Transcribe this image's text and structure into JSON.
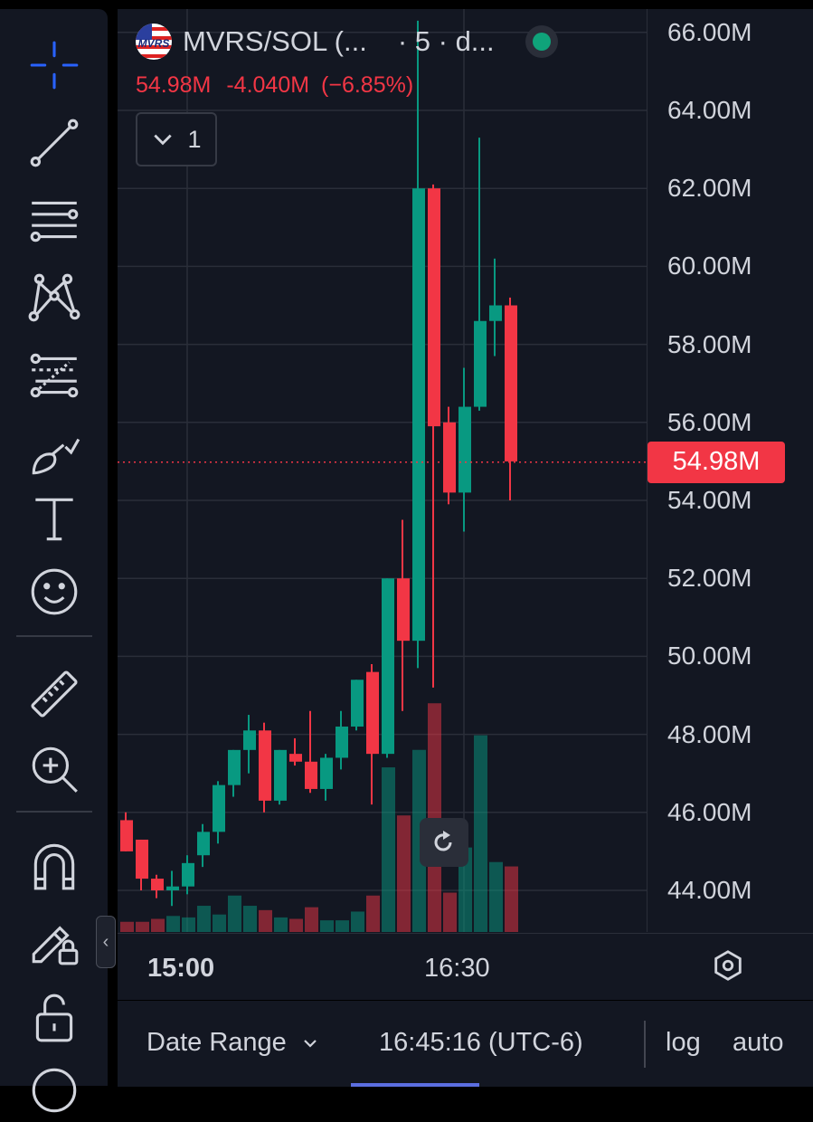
{
  "symbol": {
    "name": "MVRS/SOL (...",
    "interval": "· 5 · d...",
    "logo_text": "MVRS"
  },
  "legend": {
    "last": "54.98M",
    "change": "-4.040M",
    "change_pct": "(−6.85%)",
    "series_toggle": "1"
  },
  "colors": {
    "up": "#089981",
    "down": "#f23645",
    "background": "#131722",
    "grid": "#2a2e39"
  },
  "toolbar": {
    "icons": [
      "crosshair-icon",
      "trend-line-icon",
      "horizontal-lines-icon",
      "pattern-icon",
      "fib-retracement-icon",
      "brush-icon",
      "text-icon",
      "emoji-icon",
      "ruler-icon",
      "zoom-in-icon",
      "magnet-icon",
      "lock-drawing-icon",
      "unlock-icon",
      "eye-icon"
    ]
  },
  "bottom_bar": {
    "date_range": "Date Range",
    "time": "16:45:16 (UTC-6)",
    "log": "log",
    "auto": "auto"
  },
  "chart_data": {
    "type": "candlestick",
    "y_unit": "M",
    "ylim": [
      42.6,
      66.3
    ],
    "y_ticks": [
      "66.00M",
      "64.00M",
      "62.00M",
      "60.00M",
      "58.00M",
      "56.00M",
      "54.00M",
      "52.00M",
      "50.00M",
      "48.00M",
      "46.00M",
      "44.00M"
    ],
    "y_tick_values": [
      66,
      64,
      62,
      60,
      58,
      56,
      54,
      52,
      50,
      48,
      46,
      44
    ],
    "x_ticks": [
      {
        "label": "15:00",
        "index": 4
      },
      {
        "label": "16:30",
        "index": 22
      }
    ],
    "last_price": 54.98,
    "last_price_label": "54.98M",
    "grid": true,
    "candles": [
      {
        "o": 45.8,
        "h": 46.0,
        "l": 45.0,
        "c": 45.0
      },
      {
        "o": 45.3,
        "h": 45.3,
        "l": 44.0,
        "c": 44.3
      },
      {
        "o": 44.3,
        "h": 44.4,
        "l": 43.8,
        "c": 44.0
      },
      {
        "o": 44.0,
        "h": 44.5,
        "l": 43.6,
        "c": 44.1
      },
      {
        "o": 44.1,
        "h": 44.9,
        "l": 43.9,
        "c": 44.7
      },
      {
        "o": 44.9,
        "h": 45.7,
        "l": 44.6,
        "c": 45.5
      },
      {
        "o": 45.5,
        "h": 46.8,
        "l": 45.2,
        "c": 46.7
      },
      {
        "o": 46.7,
        "h": 47.6,
        "l": 46.4,
        "c": 47.6
      },
      {
        "o": 47.6,
        "h": 48.5,
        "l": 47.0,
        "c": 48.1
      },
      {
        "o": 48.1,
        "h": 48.3,
        "l": 46.0,
        "c": 46.3
      },
      {
        "o": 46.3,
        "h": 47.6,
        "l": 46.2,
        "c": 47.6
      },
      {
        "o": 47.5,
        "h": 47.9,
        "l": 47.2,
        "c": 47.3
      },
      {
        "o": 47.3,
        "h": 48.6,
        "l": 46.5,
        "c": 46.6
      },
      {
        "o": 46.6,
        "h": 47.5,
        "l": 46.3,
        "c": 47.4
      },
      {
        "o": 47.4,
        "h": 48.6,
        "l": 47.1,
        "c": 48.2
      },
      {
        "o": 48.2,
        "h": 49.4,
        "l": 48.1,
        "c": 49.4
      },
      {
        "o": 49.6,
        "h": 49.8,
        "l": 46.2,
        "c": 47.5
      },
      {
        "o": 47.5,
        "h": 52.0,
        "l": 47.4,
        "c": 52.0
      },
      {
        "o": 52.0,
        "h": 53.5,
        "l": 48.6,
        "c": 50.4
      },
      {
        "o": 50.4,
        "h": 66.3,
        "l": 49.7,
        "c": 62.0
      },
      {
        "o": 62.0,
        "h": 62.1,
        "l": 49.2,
        "c": 55.9
      },
      {
        "o": 56.0,
        "h": 56.4,
        "l": 53.9,
        "c": 54.2
      },
      {
        "o": 54.2,
        "h": 57.4,
        "l": 53.2,
        "c": 56.4
      },
      {
        "o": 56.4,
        "h": 63.3,
        "l": 56.3,
        "c": 58.6
      },
      {
        "o": 58.6,
        "h": 60.2,
        "l": 57.7,
        "c": 59.0
      },
      {
        "o": 59.0,
        "h": 59.2,
        "l": 54.0,
        "c": 55.0
      }
    ],
    "volume": [
      {
        "v": 0.7,
        "up": false
      },
      {
        "v": 0.7,
        "up": false
      },
      {
        "v": 0.9,
        "up": false
      },
      {
        "v": 1.1,
        "up": true
      },
      {
        "v": 1.0,
        "up": true
      },
      {
        "v": 1.8,
        "up": true
      },
      {
        "v": 1.2,
        "up": true
      },
      {
        "v": 2.5,
        "up": true
      },
      {
        "v": 1.8,
        "up": true
      },
      {
        "v": 1.5,
        "up": false
      },
      {
        "v": 1.0,
        "up": true
      },
      {
        "v": 0.9,
        "up": false
      },
      {
        "v": 1.7,
        "up": false
      },
      {
        "v": 0.8,
        "up": true
      },
      {
        "v": 0.8,
        "up": true
      },
      {
        "v": 1.4,
        "up": true
      },
      {
        "v": 2.5,
        "up": false
      },
      {
        "v": 11.3,
        "up": true
      },
      {
        "v": 8.0,
        "up": false
      },
      {
        "v": 12.5,
        "up": true
      },
      {
        "v": 15.7,
        "up": false
      },
      {
        "v": 2.7,
        "up": false
      },
      {
        "v": 5.8,
        "up": true
      },
      {
        "v": 13.5,
        "up": true
      },
      {
        "v": 4.8,
        "up": true
      },
      {
        "v": 4.5,
        "up": false
      }
    ]
  }
}
